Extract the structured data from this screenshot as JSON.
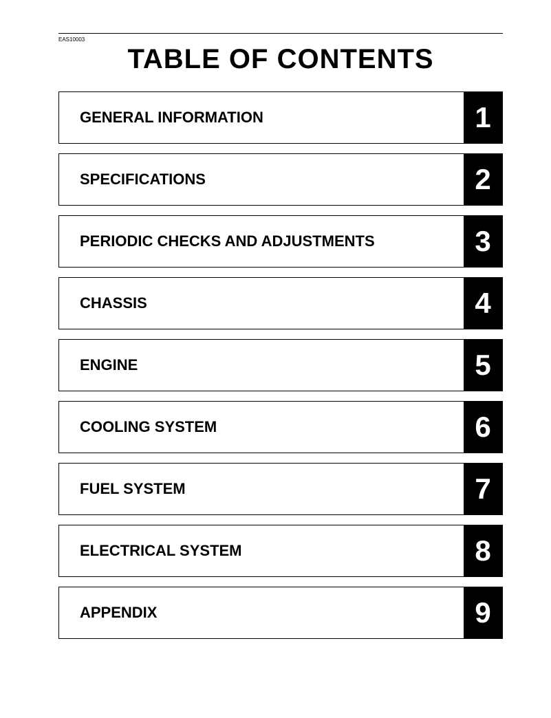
{
  "refCode": "EAS10003",
  "title": "TABLE OF CONTENTS",
  "tocItems": [
    {
      "label": "GENERAL INFORMATION",
      "number": "1"
    },
    {
      "label": "SPECIFICATIONS",
      "number": "2"
    },
    {
      "label": "PERIODIC CHECKS AND ADJUSTMENTS",
      "number": "3"
    },
    {
      "label": "CHASSIS",
      "number": "4"
    },
    {
      "label": "ENGINE",
      "number": "5"
    },
    {
      "label": "COOLING SYSTEM",
      "number": "6"
    },
    {
      "label": "FUEL SYSTEM",
      "number": "7"
    },
    {
      "label": "ELECTRICAL SYSTEM",
      "number": "8"
    },
    {
      "label": "APPENDIX",
      "number": "9"
    }
  ],
  "colors": {
    "background": "#ffffff",
    "text": "#000000",
    "numberBg": "#000000",
    "numberText": "#ffffff",
    "border": "#000000"
  }
}
